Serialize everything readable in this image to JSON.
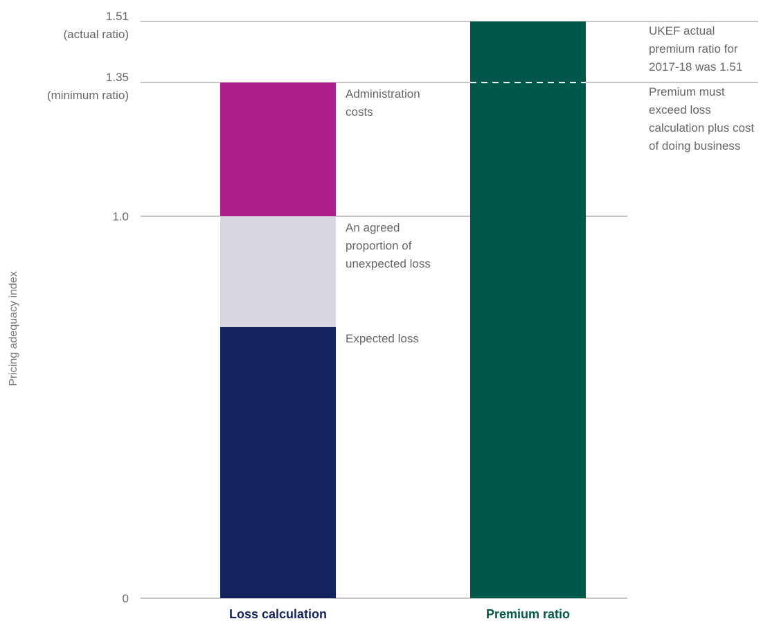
{
  "chart_data": {
    "type": "bar",
    "stacked": true,
    "ylabel": "Pricing adequacy index",
    "ylim": [
      0,
      1.51
    ],
    "y_ticks": [
      {
        "value": 0,
        "lines": [
          "0"
        ]
      },
      {
        "value": 1.0,
        "lines": [
          "1.0"
        ]
      },
      {
        "value": 1.35,
        "lines": [
          "1.35",
          "(minimum ratio)"
        ]
      },
      {
        "value": 1.51,
        "lines": [
          "1.51",
          "(actual ratio)"
        ]
      }
    ],
    "categories": [
      "Loss calculation",
      "Premium ratio"
    ],
    "category_colors": [
      "#14225e",
      "#00574a"
    ],
    "series": [
      {
        "name": "Expected loss",
        "category": "Loss calculation",
        "start": 0,
        "end": 0.71,
        "color": "#14225e",
        "label_lines": [
          "Expected loss"
        ]
      },
      {
        "name": "An agreed proportion of unexpected loss",
        "category": "Loss calculation",
        "start": 0.71,
        "end": 1.0,
        "color": "#d7d7e3",
        "label_lines": [
          "An agreed",
          "proportion of",
          "unexpected loss"
        ]
      },
      {
        "name": "Administration costs",
        "category": "Loss calculation",
        "start": 1.0,
        "end": 1.35,
        "color": "#ad1f8c",
        "label_lines": [
          "Administration",
          "costs"
        ]
      },
      {
        "name": "Premium ratio",
        "category": "Premium ratio",
        "start": 0,
        "end": 1.51,
        "color": "#00574a",
        "label_lines": []
      }
    ],
    "reference_line": {
      "value": 1.35,
      "style": "dashed",
      "on_category": "Premium ratio"
    },
    "annotations": [
      {
        "at": 1.51,
        "lines": [
          "UKEF actual",
          "premium ratio for",
          "2017-18 was 1.51"
        ]
      },
      {
        "at": 1.35,
        "lines": [
          "Premium must",
          "exceed loss",
          "calculation plus cost",
          "of doing business"
        ]
      }
    ],
    "grid": "horizontal lines at tick values",
    "legend": "none"
  }
}
